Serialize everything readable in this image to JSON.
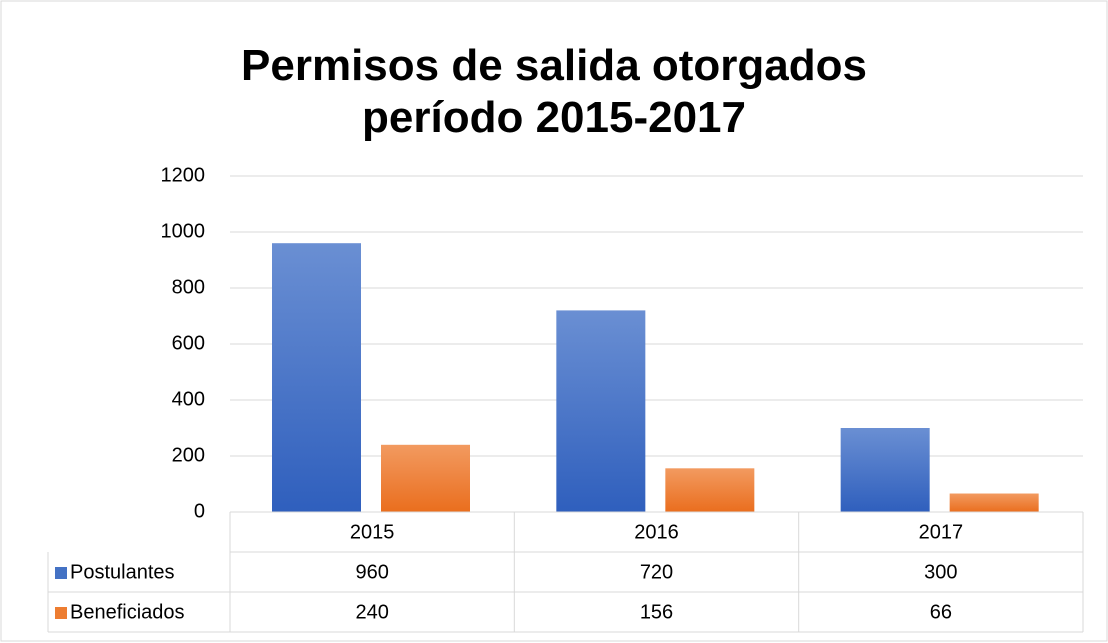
{
  "chart_data": {
    "type": "bar",
    "title": "Permisos de salida otorgados período 2015-2017",
    "categories": [
      "2015",
      "2016",
      "2017"
    ],
    "series": [
      {
        "name": "Postulantes",
        "color": "#4472c4",
        "values": [
          960,
          720,
          300
        ]
      },
      {
        "name": "Beneficiados",
        "color": "#ed7d31",
        "values": [
          240,
          156,
          66
        ]
      }
    ],
    "ylim": [
      0,
      1200
    ],
    "yticks": [
      0,
      200,
      400,
      600,
      800,
      1000,
      1200
    ],
    "grid": true,
    "data_table": true
  }
}
